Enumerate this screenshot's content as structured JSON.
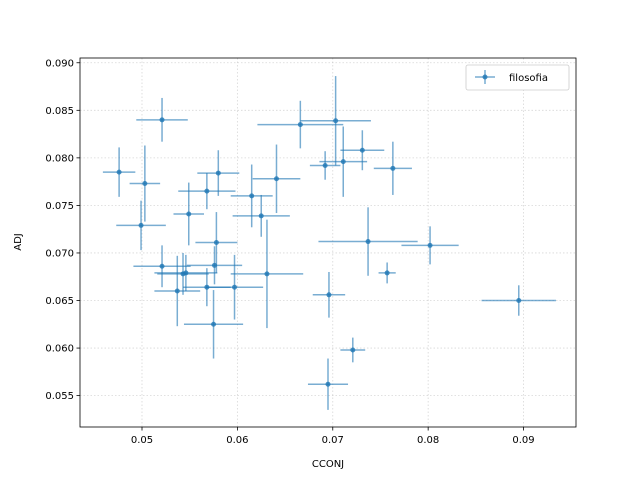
{
  "chart_data": {
    "type": "scatter",
    "xlabel": "CCONJ",
    "ylabel": "ADJ",
    "xlim": [
      0.0435,
      0.0955
    ],
    "ylim": [
      0.0517,
      0.0905
    ],
    "xticks": [
      0.05,
      0.06,
      0.07,
      0.08,
      0.09
    ],
    "yticks": [
      0.055,
      0.06,
      0.065,
      0.07,
      0.075,
      0.08,
      0.085,
      0.09
    ],
    "xtick_labels": [
      "0.05",
      "0.06",
      "0.07",
      "0.08",
      "0.09"
    ],
    "ytick_labels": [
      "0.055",
      "0.060",
      "0.065",
      "0.070",
      "0.075",
      "0.080",
      "0.085",
      "0.090"
    ],
    "grid": true,
    "legend_position": "top-right",
    "color": "#1f77b4",
    "series": [
      {
        "name": "filosofia",
        "points": [
          {
            "x": 0.0476,
            "y": 0.0785,
            "xerr": 0.0017,
            "yerr": 0.0026
          },
          {
            "x": 0.0503,
            "y": 0.0773,
            "xerr": 0.0016,
            "yerr": 0.004
          },
          {
            "x": 0.0499,
            "y": 0.0729,
            "xerr": 0.0026,
            "yerr": 0.0026
          },
          {
            "x": 0.0521,
            "y": 0.084,
            "xerr": 0.0027,
            "yerr": 0.0023
          },
          {
            "x": 0.0521,
            "y": 0.0686,
            "xerr": 0.003,
            "yerr": 0.0022
          },
          {
            "x": 0.0537,
            "y": 0.066,
            "xerr": 0.0024,
            "yerr": 0.0037
          },
          {
            "x": 0.0543,
            "y": 0.0678,
            "xerr": 0.0027,
            "yerr": 0.0022
          },
          {
            "x": 0.0546,
            "y": 0.0679,
            "xerr": 0.0033,
            "yerr": 0.0019
          },
          {
            "x": 0.0549,
            "y": 0.0741,
            "xerr": 0.0016,
            "yerr": 0.0033
          },
          {
            "x": 0.0568,
            "y": 0.0765,
            "xerr": 0.003,
            "yerr": 0.0019
          },
          {
            "x": 0.058,
            "y": 0.0784,
            "xerr": 0.0022,
            "yerr": 0.0024
          },
          {
            "x": 0.0578,
            "y": 0.0711,
            "xerr": 0.0022,
            "yerr": 0.0032
          },
          {
            "x": 0.0576,
            "y": 0.0687,
            "xerr": 0.0029,
            "yerr": 0.002
          },
          {
            "x": 0.0568,
            "y": 0.0664,
            "xerr": 0.0025,
            "yerr": 0.002
          },
          {
            "x": 0.0575,
            "y": 0.0625,
            "xerr": 0.0031,
            "yerr": 0.0036
          },
          {
            "x": 0.0597,
            "y": 0.0664,
            "xerr": 0.003,
            "yerr": 0.0034
          },
          {
            "x": 0.0615,
            "y": 0.076,
            "xerr": 0.0022,
            "yerr": 0.0033
          },
          {
            "x": 0.0625,
            "y": 0.0739,
            "xerr": 0.003,
            "yerr": 0.0022
          },
          {
            "x": 0.0631,
            "y": 0.0678,
            "xerr": 0.0038,
            "yerr": 0.0057
          },
          {
            "x": 0.0641,
            "y": 0.0778,
            "xerr": 0.0025,
            "yerr": 0.0036
          },
          {
            "x": 0.0666,
            "y": 0.0835,
            "xerr": 0.0045,
            "yerr": 0.0025
          },
          {
            "x": 0.0692,
            "y": 0.0792,
            "xerr": 0.0016,
            "yerr": 0.0015
          },
          {
            "x": 0.0703,
            "y": 0.0839,
            "xerr": 0.0037,
            "yerr": 0.0047
          },
          {
            "x": 0.0711,
            "y": 0.0796,
            "xerr": 0.0025,
            "yerr": 0.0037
          },
          {
            "x": 0.0731,
            "y": 0.0808,
            "xerr": 0.0023,
            "yerr": 0.0021
          },
          {
            "x": 0.0763,
            "y": 0.0789,
            "xerr": 0.002,
            "yerr": 0.0028
          },
          {
            "x": 0.0737,
            "y": 0.0712,
            "xerr": 0.0052,
            "yerr": 0.0036
          },
          {
            "x": 0.0757,
            "y": 0.0679,
            "xerr": 0.0009,
            "yerr": 0.0011
          },
          {
            "x": 0.0802,
            "y": 0.0708,
            "xerr": 0.003,
            "yerr": 0.002
          },
          {
            "x": 0.0696,
            "y": 0.0656,
            "xerr": 0.0017,
            "yerr": 0.0024
          },
          {
            "x": 0.0721,
            "y": 0.0598,
            "xerr": 0.0013,
            "yerr": 0.0013
          },
          {
            "x": 0.0695,
            "y": 0.0562,
            "xerr": 0.0021,
            "yerr": 0.0027
          },
          {
            "x": 0.0895,
            "y": 0.065,
            "xerr": 0.0039,
            "yerr": 0.0016
          }
        ]
      }
    ]
  }
}
